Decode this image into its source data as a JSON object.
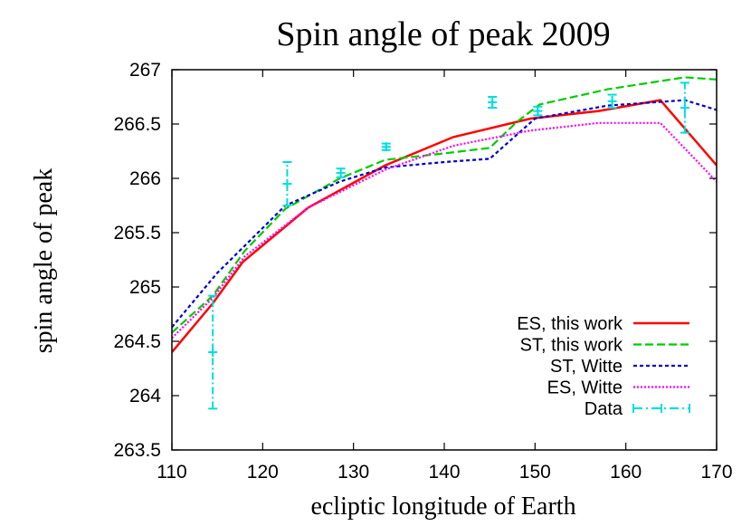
{
  "chart_data": {
    "type": "line",
    "title": "Spin angle of peak 2009",
    "xlabel": "ecliptic longitude of Earth",
    "ylabel": "spin angle of peak",
    "xlim": [
      110,
      170
    ],
    "ylim": [
      263.5,
      267
    ],
    "xticks": [
      110,
      120,
      130,
      140,
      150,
      160,
      170
    ],
    "yticks": [
      263.5,
      264,
      264.5,
      265,
      265.5,
      266,
      266.5,
      267
    ],
    "legend_position": "bottom-right",
    "grid": false,
    "series": [
      {
        "name": "ES, this work",
        "color": "#ff0000",
        "dash": "solid",
        "points": [
          [
            110,
            264.4
          ],
          [
            114.5,
            264.85
          ],
          [
            117.8,
            265.23
          ],
          [
            125,
            265.73
          ],
          [
            133.5,
            266.12
          ],
          [
            141,
            266.38
          ],
          [
            149.5,
            266.55
          ],
          [
            157,
            266.62
          ],
          [
            163.8,
            266.72
          ],
          [
            170,
            266.12
          ]
        ]
      },
      {
        "name": "ST, this work",
        "color": "#00cc00",
        "dash": "dashed",
        "points": [
          [
            110,
            264.58
          ],
          [
            114.5,
            264.92
          ],
          [
            118,
            265.33
          ],
          [
            122.5,
            265.72
          ],
          [
            128.5,
            266.0
          ],
          [
            133.5,
            266.17
          ],
          [
            140,
            266.23
          ],
          [
            145,
            266.28
          ],
          [
            148,
            266.52
          ],
          [
            150.5,
            266.68
          ],
          [
            158,
            266.82
          ],
          [
            166.5,
            266.93
          ],
          [
            170,
            266.91
          ]
        ]
      },
      {
        "name": "ST, Witte",
        "color": "#0000cc",
        "dash": "dotted",
        "points": [
          [
            110,
            264.63
          ],
          [
            115,
            265.13
          ],
          [
            122.5,
            265.75
          ],
          [
            128.5,
            265.97
          ],
          [
            133.5,
            266.1
          ],
          [
            140,
            266.15
          ],
          [
            145,
            266.18
          ],
          [
            150,
            266.55
          ],
          [
            158,
            266.67
          ],
          [
            166.5,
            266.72
          ],
          [
            170,
            266.63
          ]
        ]
      },
      {
        "name": "ES, Witte",
        "color": "#ff00ff",
        "dash": "fine-dotted",
        "points": [
          [
            110,
            264.53
          ],
          [
            114.5,
            264.9
          ],
          [
            118,
            265.28
          ],
          [
            125,
            265.73
          ],
          [
            133.5,
            266.08
          ],
          [
            141,
            266.3
          ],
          [
            149.5,
            266.44
          ],
          [
            157,
            266.51
          ],
          [
            163.8,
            266.51
          ],
          [
            170,
            265.97
          ]
        ]
      },
      {
        "name": "Data",
        "color": "#00dddd",
        "dash": "dash-dot",
        "errorbars": true,
        "points": [
          {
            "x": 114.5,
            "y": 264.4,
            "err": 0.52
          },
          {
            "x": 122.7,
            "y": 265.95,
            "err": 0.2
          },
          {
            "x": 128.6,
            "y": 266.05,
            "err": 0.04
          },
          {
            "x": 133.6,
            "y": 266.29,
            "err": 0.03
          },
          {
            "x": 145.3,
            "y": 266.7,
            "err": 0.05
          },
          {
            "x": 150.3,
            "y": 266.62,
            "err": 0.04
          },
          {
            "x": 158.5,
            "y": 266.71,
            "err": 0.06
          },
          {
            "x": 166.5,
            "y": 266.65,
            "err": 0.23
          }
        ]
      }
    ]
  }
}
